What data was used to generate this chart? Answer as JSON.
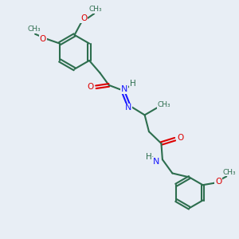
{
  "bg_color": "#e8eef5",
  "bond_color": "#2d6e4e",
  "N_color": "#1a1aff",
  "O_color": "#dd0000",
  "bond_width": 1.5,
  "figsize": [
    3.0,
    3.0
  ],
  "dpi": 100,
  "xlim": [
    0,
    10
  ],
  "ylim": [
    0,
    10
  ]
}
